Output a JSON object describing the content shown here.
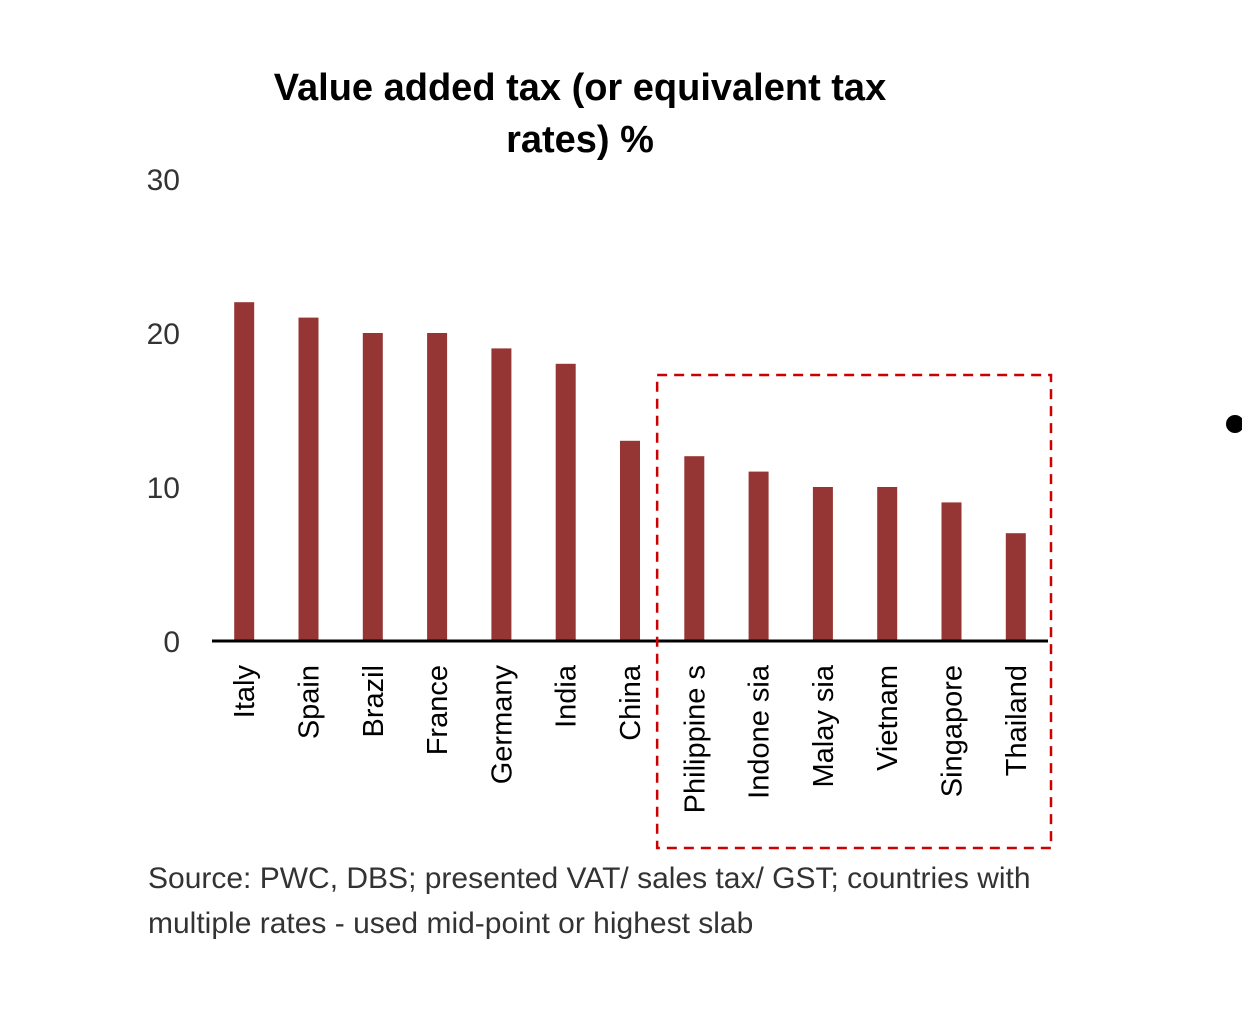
{
  "chart_data": {
    "type": "bar",
    "title": "Value added tax (or equivalent tax rates) %",
    "title_lines": [
      "Value added tax (or equivalent tax",
      "rates) %"
    ],
    "categories": [
      "Italy",
      "Spain",
      "Brazil",
      "France",
      "Germany",
      "India",
      "China",
      "Philippine s",
      "Indone sia",
      "Malay sia",
      "Vietnam",
      "Singapore",
      "Thailand"
    ],
    "values": [
      22,
      21,
      20,
      20,
      19,
      18,
      13,
      12,
      11,
      10,
      10,
      9,
      7
    ],
    "ylim": [
      0,
      30
    ],
    "yticks": [
      0,
      10,
      20,
      30
    ],
    "xlabel": "",
    "ylabel": "",
    "grid": false,
    "bar_color": "#963634",
    "highlight_box": {
      "from_category": "Philippine s",
      "to_category": "Thailand",
      "color": "#cc0000",
      "style": "dashed"
    },
    "source": "Source: PWC, DBS; presented VAT/ sales tax/ GST; countries with multiple rates - used mid-point or highest slab"
  }
}
